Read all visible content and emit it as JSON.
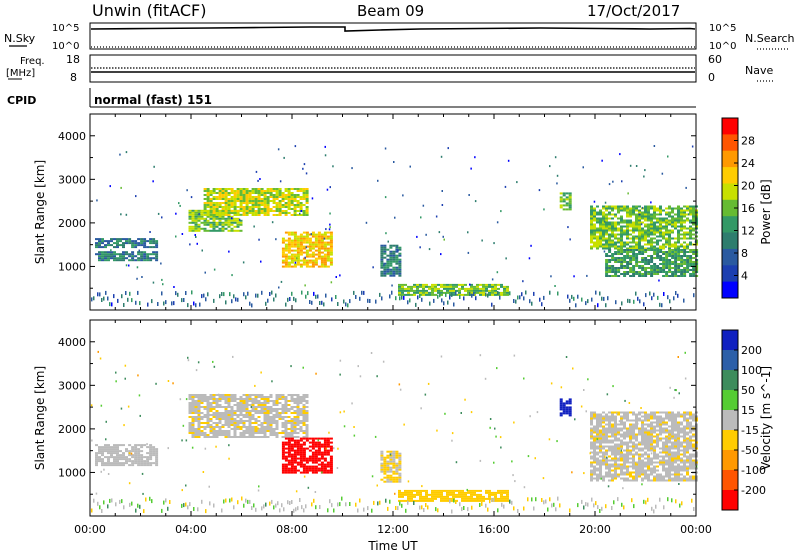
{
  "header": {
    "title": "Unwin (fitACF)",
    "beam": "Beam 09",
    "date": "17/Oct/2017"
  },
  "summary_panels": {
    "nsky_label": "N.Sky",
    "nsky_ticks": [
      "10^5",
      "10^0"
    ],
    "nsearch_label": "N.Search",
    "nsearch_ticks": [
      "10^5",
      "10^0"
    ],
    "freq_label_1": "Freq.",
    "freq_label_2": "[MHz]",
    "freq_ticks": [
      "18",
      "8"
    ],
    "nave_label": "Nave",
    "nave_ticks": [
      "60",
      "0"
    ],
    "cpid_label": "CPID",
    "cpid_value": "normal (fast) 151"
  },
  "chart_data": [
    {
      "type": "heatmap",
      "panel": "power",
      "xlabel": "",
      "ylabel": "Slant Range [km]",
      "colorbar_label": "Power [dB]",
      "colorbar_ticks": [
        "28",
        "24",
        "20",
        "16",
        "12",
        "8",
        "4"
      ],
      "colorbar_colors": [
        "#ff0000",
        "#ff5500",
        "#ff9900",
        "#ffcc00",
        "#c8e000",
        "#66bb33",
        "#339966",
        "#2e7d6e",
        "#2a5aa0",
        "#1c3fb0",
        "#0000ff"
      ],
      "xlim": [
        0,
        24
      ],
      "ylim": [
        0,
        4500
      ],
      "yticks": [
        1000,
        2000,
        3000,
        4000
      ],
      "echo_regions": [
        {
          "t0": 0.2,
          "t1": 2.6,
          "r0": 1150,
          "r1": 1350,
          "level": 10
        },
        {
          "t0": 0.2,
          "t1": 2.6,
          "r0": 1450,
          "r1": 1650,
          "level": 9
        },
        {
          "t0": 3.9,
          "t1": 6.0,
          "r0": 1800,
          "r1": 2300,
          "level": 14
        },
        {
          "t0": 4.5,
          "t1": 8.6,
          "r0": 2200,
          "r1": 2800,
          "level": 18
        },
        {
          "t0": 7.6,
          "t1": 9.6,
          "r0": 1000,
          "r1": 1800,
          "level": 22
        },
        {
          "t0": 11.5,
          "t1": 12.3,
          "r0": 800,
          "r1": 1500,
          "level": 8
        },
        {
          "t0": 12.2,
          "t1": 16.5,
          "r0": 350,
          "r1": 600,
          "level": 14
        },
        {
          "t0": 18.6,
          "t1": 19.0,
          "r0": 2300,
          "r1": 2700,
          "level": 14
        },
        {
          "t0": 19.8,
          "t1": 24.0,
          "r0": 1400,
          "r1": 2400,
          "level": 16
        },
        {
          "t0": 20.4,
          "t1": 24.0,
          "r0": 800,
          "r1": 1400,
          "level": 12
        }
      ]
    },
    {
      "type": "heatmap",
      "panel": "velocity",
      "xlabel": "Time UT",
      "ylabel": "Slant Range [km]",
      "colorbar_label": "Velocity [m s^-1]",
      "colorbar_ticks": [
        "200",
        "100",
        "50",
        "15",
        "-15",
        "-50",
        "-100",
        "-200"
      ],
      "colorbar_colors": [
        "#1020c0",
        "#2c5fa8",
        "#3d8c5c",
        "#55cc33",
        "#bbbbbb",
        "#ffcc00",
        "#ff9900",
        "#ff5500",
        "#ff0000"
      ],
      "xlim": [
        0,
        24
      ],
      "ylim": [
        0,
        4500
      ],
      "yticks": [
        1000,
        2000,
        3000,
        4000
      ],
      "xticks": [
        "00:00",
        "04:00",
        "08:00",
        "12:00",
        "16:00",
        "20:00",
        "00:00"
      ],
      "echo_regions": [
        {
          "t0": 0.2,
          "t1": 2.6,
          "r0": 1150,
          "r1": 1650,
          "velocity": 0
        },
        {
          "t0": 3.9,
          "t1": 8.6,
          "r0": 1800,
          "r1": 2800,
          "velocity": -5
        },
        {
          "t0": 7.6,
          "t1": 9.6,
          "r0": 1000,
          "r1": 1800,
          "velocity": -220
        },
        {
          "t0": 11.5,
          "t1": 12.3,
          "r0": 800,
          "r1": 1500,
          "velocity": -20
        },
        {
          "t0": 12.2,
          "t1": 16.5,
          "r0": 350,
          "r1": 600,
          "velocity": -30
        },
        {
          "t0": 18.6,
          "t1": 19.0,
          "r0": 2300,
          "r1": 2700,
          "velocity": 210
        },
        {
          "t0": 19.8,
          "t1": 24.0,
          "r0": 800,
          "r1": 2400,
          "velocity": -5
        }
      ]
    }
  ]
}
